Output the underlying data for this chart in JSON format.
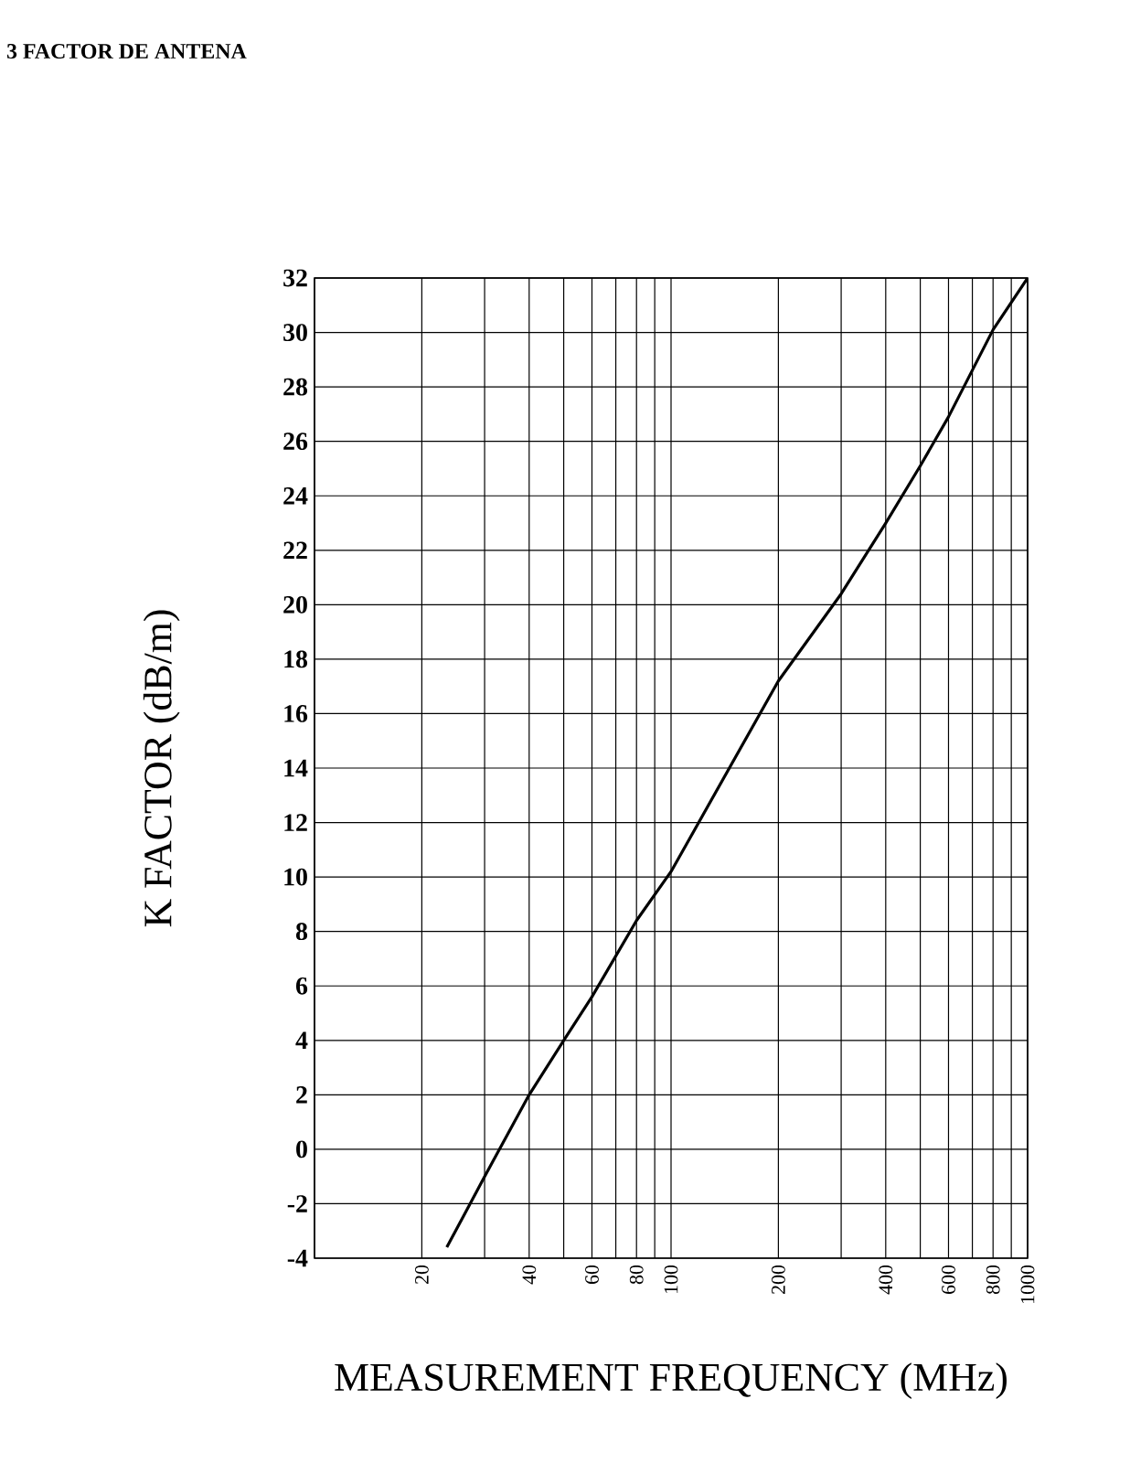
{
  "chart_data": {
    "type": "line",
    "title": "3 FACTOR DE ANTENA",
    "xlabel": "MEASUREMENT FREQUENCY (MHz)",
    "ylabel": "K FACTOR (dB/m)",
    "log": "x",
    "x": [
      23.5,
      30,
      40,
      50,
      60,
      80,
      100,
      200,
      300,
      400,
      500,
      600,
      800,
      1000
    ],
    "series": [
      {
        "color": "#000000",
        "values": [
          -3.6,
          -1,
          2,
          4,
          5.6,
          8.4,
          10.2,
          17.2,
          20.4,
          23,
          25.1,
          26.9,
          30.1,
          32
        ]
      }
    ],
    "xlim": [
      10,
      1000
    ],
    "ylim": [
      -4,
      32
    ],
    "xticks": [
      {
        "value": 10,
        "label": null
      },
      20,
      {
        "value": 30,
        "label": null
      },
      40,
      {
        "value": 50,
        "label": null
      },
      60,
      {
        "value": 70,
        "label": null
      },
      80,
      {
        "value": 90,
        "label": null
      },
      100,
      200,
      {
        "value": 300,
        "label": null
      },
      400,
      {
        "value": 500,
        "label": null
      },
      600,
      {
        "value": 700,
        "label": null
      },
      800,
      {
        "value": 900,
        "label": null
      },
      1000
    ],
    "yticks": [
      -4,
      -2,
      0,
      2,
      4,
      6,
      8,
      10,
      12,
      14,
      16,
      18,
      20,
      22,
      24,
      26,
      28,
      30,
      32
    ],
    "grid": true,
    "marker": "none",
    "line_style": "solid"
  }
}
